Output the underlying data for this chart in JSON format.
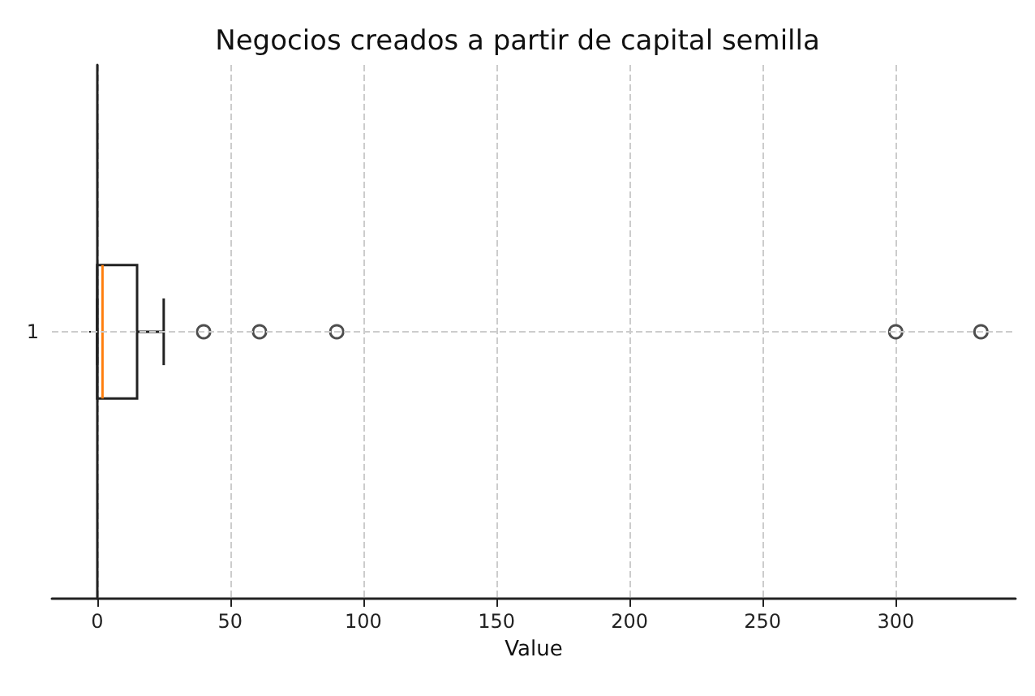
{
  "chart_data": {
    "type": "box",
    "orientation": "horizontal",
    "title": "Negocios creados a partir de capital semilla",
    "xlabel": "Value",
    "categories": [
      "1"
    ],
    "color": "#222222",
    "boxes": [
      {
        "low": 0,
        "q1": 0,
        "median": 2,
        "q3": 15,
        "high": 25,
        "outliers": [
          40,
          61,
          90,
          300,
          332
        ]
      }
    ],
    "xlim": [
      -17,
      345
    ],
    "xticks": [
      0,
      50,
      100,
      150,
      200,
      250,
      300
    ],
    "grid": true
  }
}
